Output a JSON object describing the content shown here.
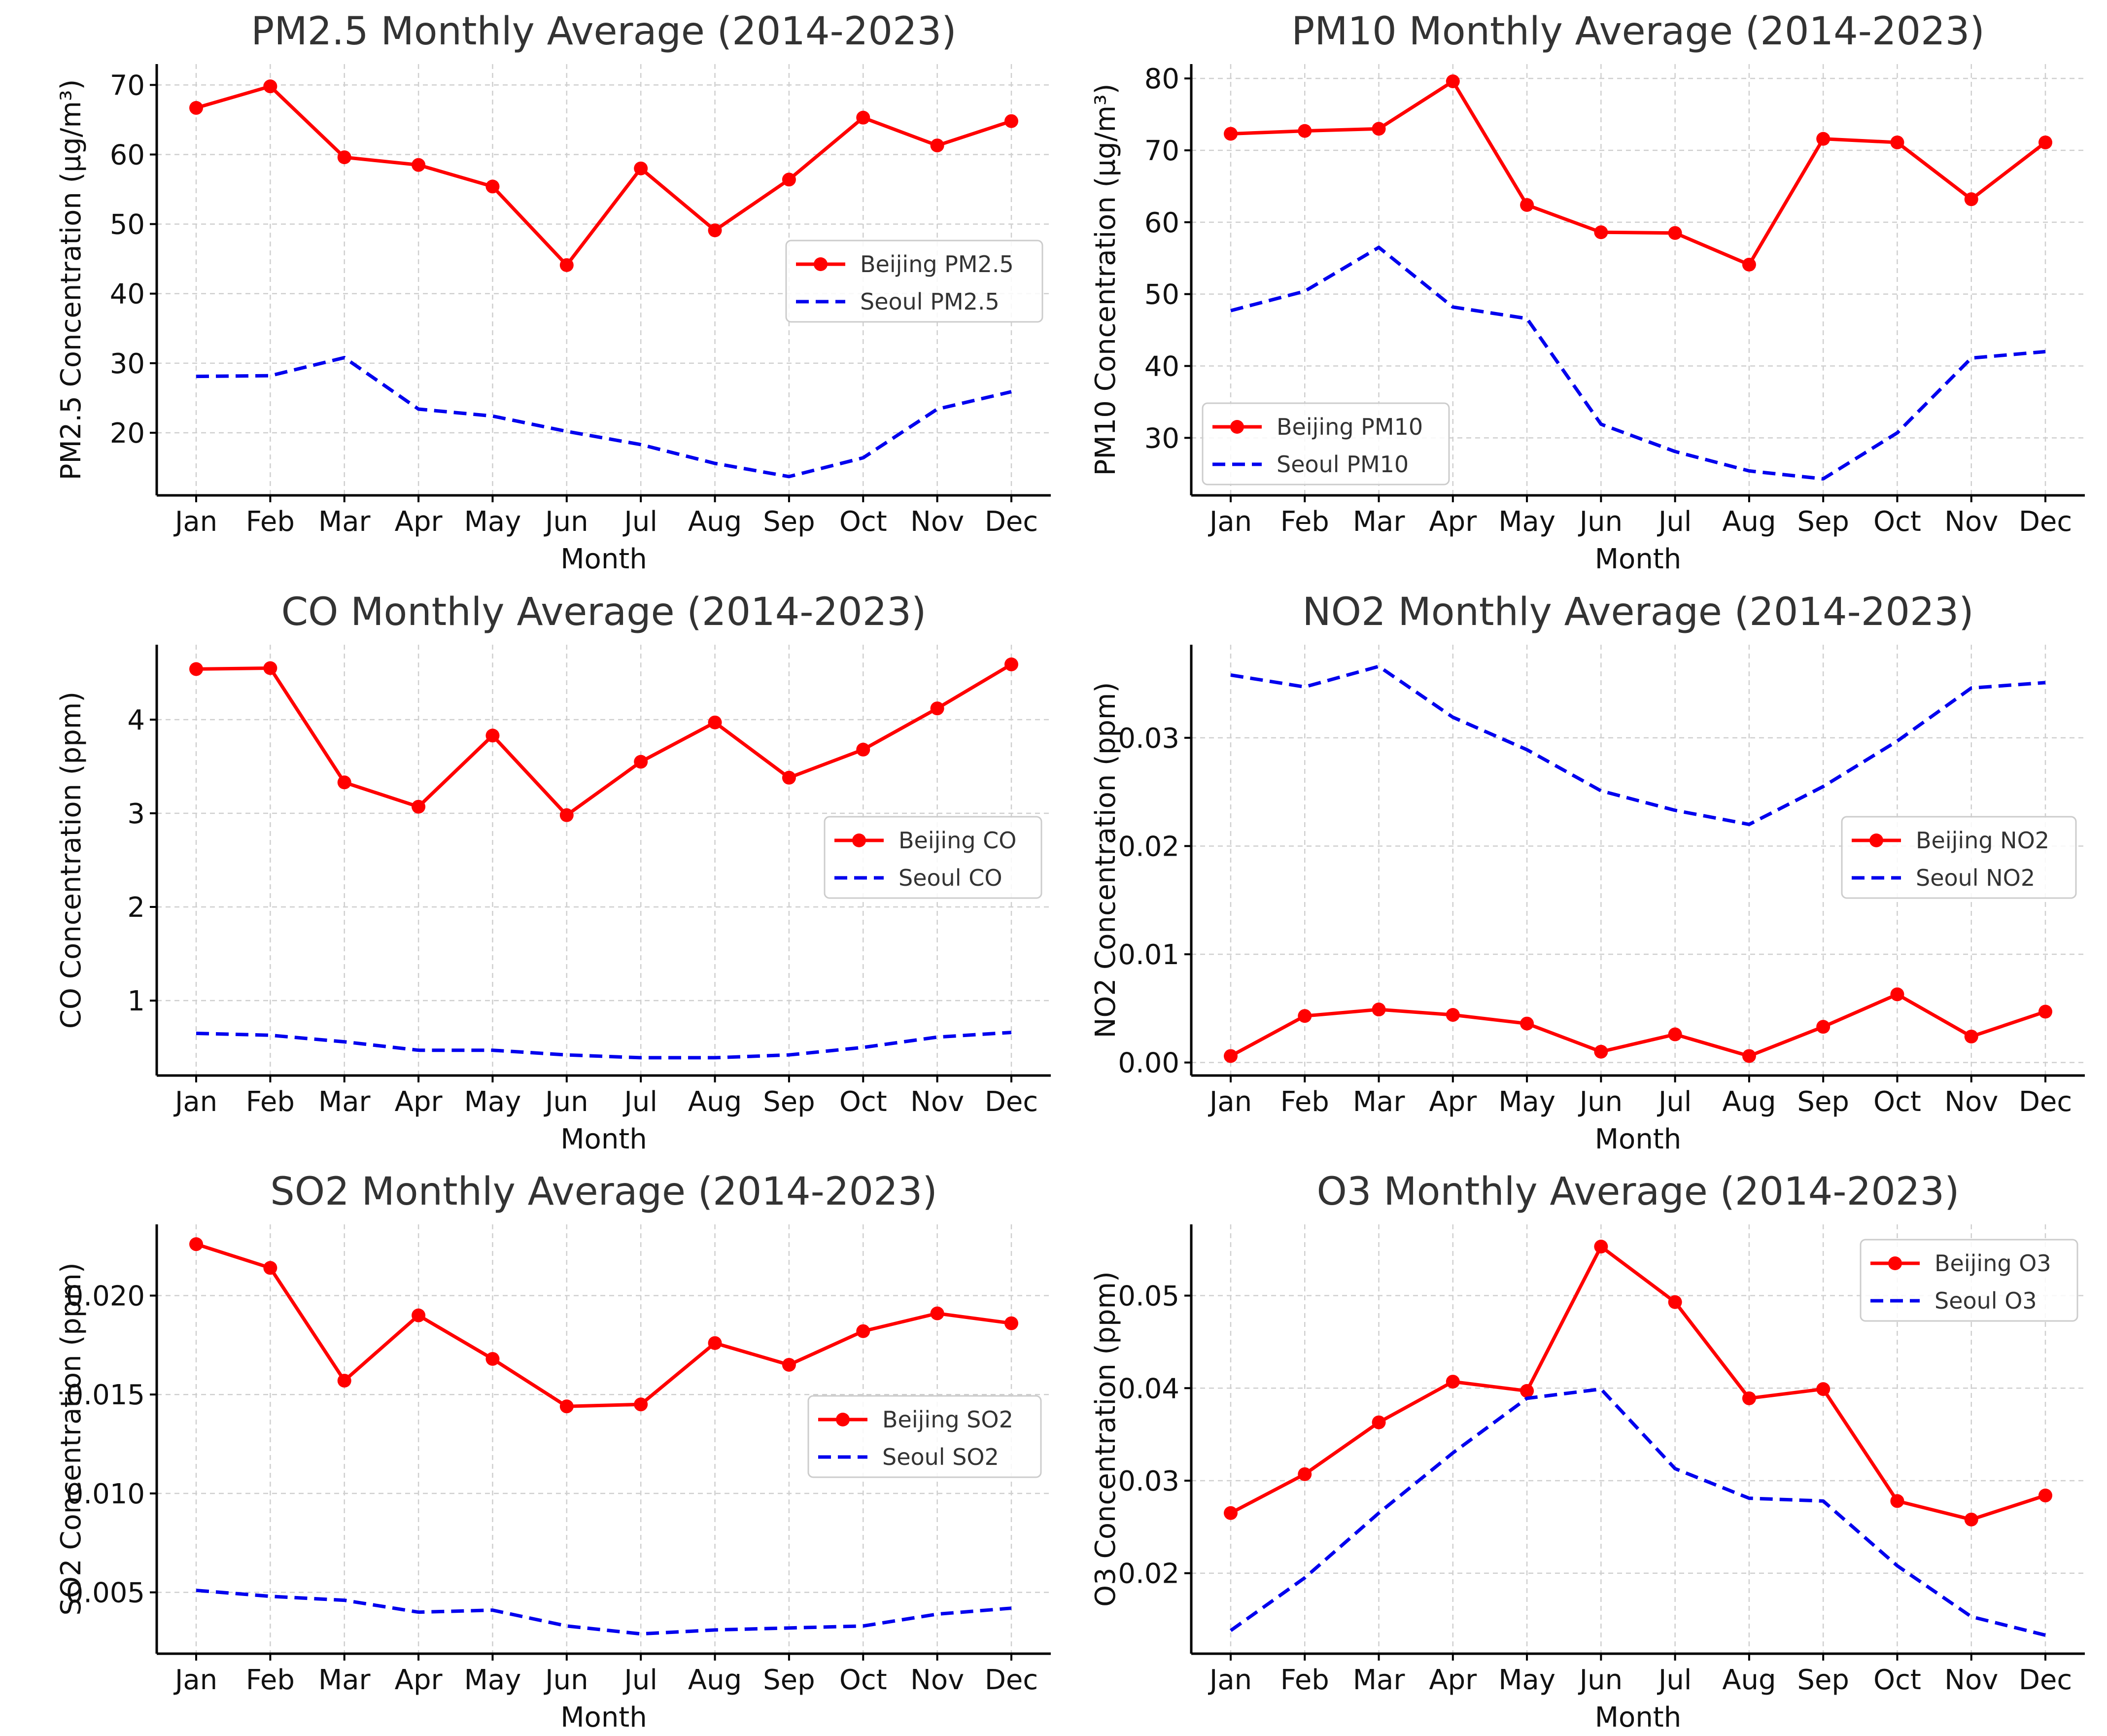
{
  "colors": {
    "beijing": "#ff0000",
    "seoul": "#0000ee"
  },
  "chart_data": [
    {
      "type": "line",
      "title": "PM2.5 Monthly Average (2014-2023)",
      "xlabel": "Month",
      "ylabel": "PM2.5 Concentration (µg/m³)",
      "categories": [
        "Jan",
        "Feb",
        "Mar",
        "Apr",
        "May",
        "Jun",
        "Jul",
        "Aug",
        "Sep",
        "Oct",
        "Nov",
        "Dec"
      ],
      "ylim": [
        11,
        73
      ],
      "yticks": [
        20,
        30,
        40,
        50,
        60,
        70
      ],
      "ytick_labels": [
        "20",
        "30",
        "40",
        "50",
        "60",
        "70"
      ],
      "legend_position": "center-right",
      "grid": true,
      "series": [
        {
          "name": "Beijing PM2.5",
          "style": "solid-marker",
          "values": [
            66.7,
            69.8,
            59.6,
            58.5,
            55.4,
            44.1,
            58.0,
            49.1,
            56.4,
            65.3,
            61.3,
            64.8
          ]
        },
        {
          "name": "Seoul PM2.5",
          "style": "dashed",
          "values": [
            28.1,
            28.2,
            30.8,
            23.4,
            22.4,
            20.2,
            18.3,
            15.6,
            13.7,
            16.4,
            23.4,
            25.9
          ]
        }
      ]
    },
    {
      "type": "line",
      "title": "PM10 Monthly Average (2014-2023)",
      "xlabel": "Month",
      "ylabel": "PM10 Concentration (µg/m³)",
      "categories": [
        "Jan",
        "Feb",
        "Mar",
        "Apr",
        "May",
        "Jun",
        "Jul",
        "Aug",
        "Sep",
        "Oct",
        "Nov",
        "Dec"
      ],
      "ylim": [
        22,
        82
      ],
      "yticks": [
        30,
        40,
        50,
        60,
        70,
        80
      ],
      "ytick_labels": [
        "30",
        "40",
        "50",
        "60",
        "70",
        "80"
      ],
      "legend_position": "lower-left",
      "grid": true,
      "series": [
        {
          "name": "Beijing PM10",
          "style": "solid-marker",
          "values": [
            72.3,
            72.7,
            73.0,
            79.6,
            62.4,
            58.6,
            58.5,
            54.1,
            71.6,
            71.1,
            63.2,
            71.1
          ]
        },
        {
          "name": "Seoul PM10",
          "style": "dashed",
          "values": [
            47.7,
            50.4,
            56.5,
            48.2,
            46.6,
            31.9,
            28.1,
            25.4,
            24.3,
            30.7,
            41.1,
            42.0
          ]
        }
      ]
    },
    {
      "type": "line",
      "title": "CO Monthly Average (2014-2023)",
      "xlabel": "Month",
      "ylabel": "CO Concentration (ppm)",
      "categories": [
        "Jan",
        "Feb",
        "Mar",
        "Apr",
        "May",
        "Jun",
        "Jul",
        "Aug",
        "Sep",
        "Oct",
        "Nov",
        "Dec"
      ],
      "ylim": [
        0.2,
        4.8
      ],
      "yticks": [
        1,
        2,
        3,
        4
      ],
      "ytick_labels": [
        "1",
        "2",
        "3",
        "4"
      ],
      "legend_position": "center-right",
      "grid": true,
      "series": [
        {
          "name": "Beijing CO",
          "style": "solid-marker",
          "values": [
            4.54,
            4.55,
            3.33,
            3.07,
            3.83,
            2.98,
            3.55,
            3.97,
            3.38,
            3.68,
            4.12,
            4.59
          ]
        },
        {
          "name": "Seoul CO",
          "style": "dashed",
          "values": [
            0.65,
            0.63,
            0.56,
            0.47,
            0.47,
            0.42,
            0.39,
            0.39,
            0.42,
            0.5,
            0.61,
            0.66
          ]
        }
      ]
    },
    {
      "type": "line",
      "title": "NO2 Monthly Average (2014-2023)",
      "xlabel": "Month",
      "ylabel": "NO2 Concentration (ppm)",
      "categories": [
        "Jan",
        "Feb",
        "Mar",
        "Apr",
        "May",
        "Jun",
        "Jul",
        "Aug",
        "Sep",
        "Oct",
        "Nov",
        "Dec"
      ],
      "ylim": [
        -0.0012,
        0.0386
      ],
      "yticks": [
        0.0,
        0.01,
        0.02,
        0.03
      ],
      "ytick_labels": [
        "0.00",
        "0.01",
        "0.02",
        "0.03"
      ],
      "legend_position": "center-right",
      "grid": true,
      "series": [
        {
          "name": "Beijing NO2",
          "style": "solid-marker",
          "values": [
            0.0006,
            0.0043,
            0.0049,
            0.0044,
            0.0036,
            0.001,
            0.0026,
            0.0006,
            0.0033,
            0.0063,
            0.0024,
            0.0047
          ]
        },
        {
          "name": "Seoul NO2",
          "style": "dashed",
          "values": [
            0.0358,
            0.0347,
            0.0366,
            0.0319,
            0.0289,
            0.0251,
            0.0233,
            0.022,
            0.0255,
            0.0297,
            0.0346,
            0.0351
          ]
        }
      ]
    },
    {
      "type": "line",
      "title": "SO2 Monthly Average (2014-2023)",
      "xlabel": "Month",
      "ylabel": "SO2 Concentration (ppm)",
      "categories": [
        "Jan",
        "Feb",
        "Mar",
        "Apr",
        "May",
        "Jun",
        "Jul",
        "Aug",
        "Sep",
        "Oct",
        "Nov",
        "Dec"
      ],
      "ylim": [
        0.0019,
        0.0236
      ],
      "yticks": [
        0.005,
        0.01,
        0.015,
        0.02
      ],
      "ytick_labels": [
        "0.005",
        "0.010",
        "0.015",
        "0.020"
      ],
      "legend_position": "center-right",
      "grid": true,
      "series": [
        {
          "name": "Beijing SO2",
          "style": "solid-marker",
          "values": [
            0.0226,
            0.0214,
            0.0157,
            0.019,
            0.0168,
            0.0144,
            0.0145,
            0.0176,
            0.0165,
            0.0182,
            0.0191,
            0.0186
          ]
        },
        {
          "name": "Seoul SO2",
          "style": "dashed",
          "values": [
            0.0051,
            0.0048,
            0.0046,
            0.004,
            0.0041,
            0.0033,
            0.0029,
            0.0031,
            0.0032,
            0.0033,
            0.0039,
            0.0042
          ]
        }
      ]
    },
    {
      "type": "line",
      "title": "O3 Monthly Average (2014-2023)",
      "xlabel": "Month",
      "ylabel": "O3 Concentration (ppm)",
      "categories": [
        "Jan",
        "Feb",
        "Mar",
        "Apr",
        "May",
        "Jun",
        "Jul",
        "Aug",
        "Sep",
        "Oct",
        "Nov",
        "Dec"
      ],
      "ylim": [
        0.0113,
        0.0577
      ],
      "yticks": [
        0.02,
        0.03,
        0.04,
        0.05
      ],
      "ytick_labels": [
        "0.02",
        "0.03",
        "0.04",
        "0.05"
      ],
      "legend_position": "upper-right",
      "grid": true,
      "series": [
        {
          "name": "Beijing O3",
          "style": "solid-marker",
          "values": [
            0.0265,
            0.0307,
            0.0363,
            0.0407,
            0.0397,
            0.0553,
            0.0493,
            0.0389,
            0.0399,
            0.0278,
            0.0258,
            0.0284
          ]
        },
        {
          "name": "Seoul O3",
          "style": "dashed",
          "values": [
            0.0138,
            0.0195,
            0.0265,
            0.033,
            0.0389,
            0.0399,
            0.0313,
            0.0281,
            0.0278,
            0.0208,
            0.0153,
            0.0133
          ]
        }
      ]
    }
  ]
}
